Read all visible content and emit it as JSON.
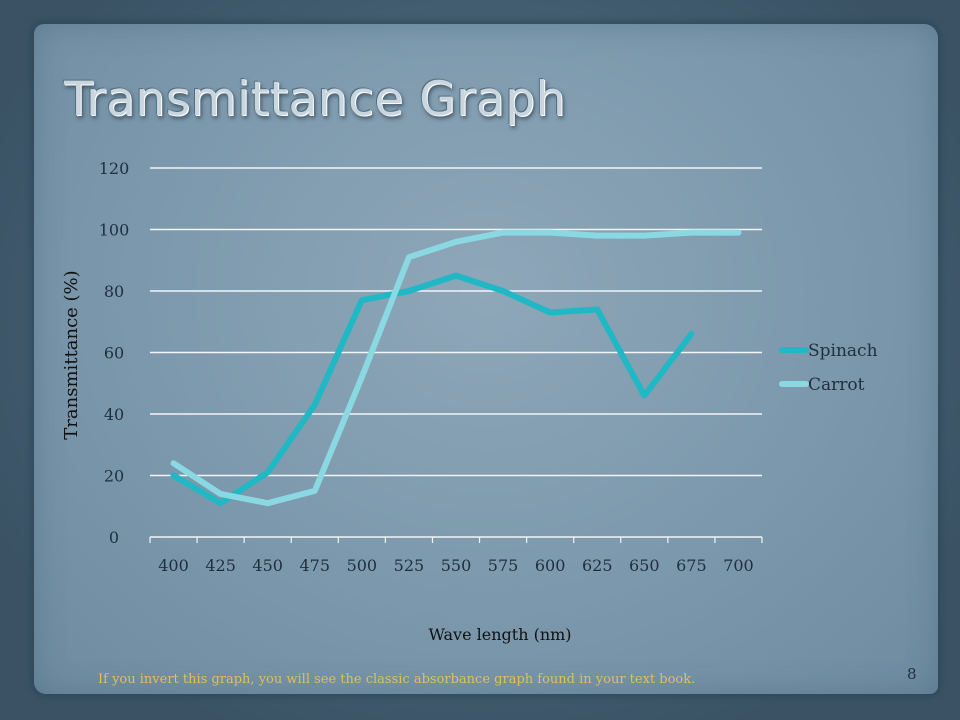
{
  "slide": {
    "title": "Transmittance Graph",
    "footnote": "If you invert this graph, you will see the classic  absorbance graph found in your text book.",
    "page_number": "8"
  },
  "colors": {
    "spinach": "#1fb8c4",
    "carrot": "#8ad8e2",
    "gridline": "#f2f5f7",
    "footnote": "#e0bf5c"
  },
  "chart_data": {
    "type": "line",
    "title": "",
    "xlabel": "Wave length (nm)",
    "ylabel": "Transmittance (%)",
    "ylim": [
      0,
      120
    ],
    "yticks": [
      "0",
      "20",
      "40",
      "60",
      "80",
      "100",
      "120"
    ],
    "categories": [
      "400",
      "425",
      "450",
      "475",
      "500",
      "525",
      "550",
      "575",
      "600",
      "625",
      "650",
      "675",
      "700"
    ],
    "grid": true,
    "legend_position": "right",
    "series": [
      {
        "name": "Spinach",
        "color": "#1fb8c4",
        "values": [
          20,
          11,
          21,
          43,
          77,
          80,
          85,
          80,
          73,
          74,
          46,
          66,
          null
        ]
      },
      {
        "name": "Carrot",
        "color": "#8ad8e2",
        "values": [
          24,
          14,
          11,
          15,
          52,
          91,
          96,
          99,
          99,
          98,
          98,
          99,
          99
        ]
      }
    ]
  }
}
